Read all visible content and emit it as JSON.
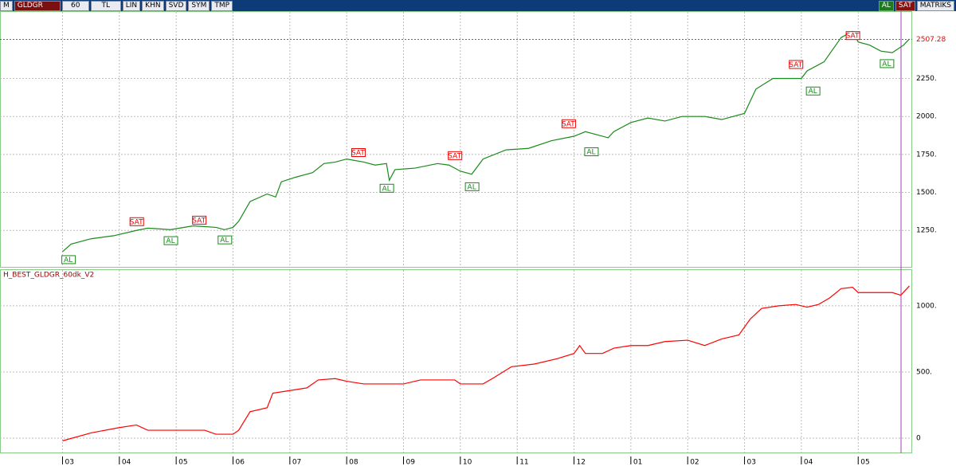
{
  "toolbar": {
    "prefix": "M",
    "symbol": "GLDGR",
    "period": "60",
    "currency": "TL",
    "buttons": [
      "LIN",
      "KHN",
      "SVD",
      "SYM",
      "TMP"
    ],
    "buy": "AL",
    "sell": "SAT",
    "brand": "MATRIKS"
  },
  "chart_data": [
    {
      "type": "line",
      "color": "#1a8a1a",
      "xlim": [
        -1.1,
        14.95
      ],
      "ylim": [
        1010,
        2688
      ],
      "yticks": [
        {
          "value": 1250,
          "label": "1250."
        },
        {
          "value": 1500,
          "label": "1500."
        },
        {
          "value": 1750,
          "label": "1750."
        },
        {
          "value": 2000,
          "label": "2000."
        },
        {
          "value": 2250,
          "label": "2250."
        }
      ],
      "grid": true,
      "last_price": 2507.28,
      "x": [
        0,
        0.15,
        0.5,
        0.9,
        1.3,
        1.5,
        1.9,
        2.3,
        2.7,
        2.85,
        3.0,
        3.1,
        3.3,
        3.6,
        3.75,
        3.85,
        4.1,
        4.4,
        4.6,
        4.8,
        5.0,
        5.3,
        5.5,
        5.7,
        5.75,
        5.85,
        6.2,
        6.6,
        6.8,
        7.0,
        7.2,
        7.4,
        7.8,
        8.2,
        8.6,
        9.0,
        9.2,
        9.4,
        9.6,
        9.7,
        10.0,
        10.3,
        10.6,
        10.9,
        11.3,
        11.6,
        12.0,
        12.2,
        12.5,
        12.8,
        13.0,
        13.1,
        13.4,
        13.7,
        13.9,
        14.0,
        14.2,
        14.4,
        14.6,
        14.8,
        14.9
      ],
      "values": [
        1110,
        1160,
        1195,
        1215,
        1250,
        1265,
        1255,
        1280,
        1270,
        1255,
        1270,
        1310,
        1440,
        1490,
        1470,
        1570,
        1600,
        1630,
        1690,
        1700,
        1720,
        1700,
        1680,
        1690,
        1580,
        1650,
        1660,
        1690,
        1680,
        1640,
        1620,
        1720,
        1780,
        1790,
        1840,
        1870,
        1900,
        1880,
        1860,
        1900,
        1960,
        1990,
        1970,
        2000,
        2000,
        1980,
        2020,
        2180,
        2250,
        2250,
        2250,
        2300,
        2360,
        2520,
        2560,
        2490,
        2470,
        2430,
        2420,
        2470,
        2510
      ],
      "signals": [
        {
          "label": "AL",
          "x": 0.1,
          "value": 1110
        },
        {
          "label": "SAT",
          "x": 1.3,
          "value": 1255
        },
        {
          "label": "AL",
          "x": 1.9,
          "value": 1235
        },
        {
          "label": "SAT",
          "x": 2.4,
          "value": 1265
        },
        {
          "label": "AL",
          "x": 2.85,
          "value": 1240
        },
        {
          "label": "SAT",
          "x": 5.2,
          "value": 1710
        },
        {
          "label": "AL",
          "x": 5.7,
          "value": 1580
        },
        {
          "label": "SAT",
          "x": 6.9,
          "value": 1690
        },
        {
          "label": "AL",
          "x": 7.2,
          "value": 1590
        },
        {
          "label": "SAT",
          "x": 8.9,
          "value": 1900
        },
        {
          "label": "AL",
          "x": 9.3,
          "value": 1820
        },
        {
          "label": "SAT",
          "x": 12.9,
          "value": 2290
        },
        {
          "label": "AL",
          "x": 13.2,
          "value": 2220
        },
        {
          "label": "SAT",
          "x": 13.9,
          "value": 2480
        },
        {
          "label": "AL",
          "x": 14.5,
          "value": 2400
        }
      ]
    },
    {
      "type": "line",
      "title": "H_BEST_GLDGR_60dk_V2",
      "color": "#ff0000",
      "xlim": [
        -1.1,
        14.95
      ],
      "ylim": [
        -108,
        1270
      ],
      "yticks": [
        0,
        {
          "value": 500,
          "label": "500."
        },
        {
          "value": 1000,
          "label": "1000."
        }
      ],
      "xticks": [
        {
          "value": 0,
          "label": "03"
        },
        {
          "value": 1,
          "label": "04"
        },
        {
          "value": 2,
          "label": "05"
        },
        {
          "value": 3,
          "label": "06"
        },
        {
          "value": 4,
          "label": "07"
        },
        {
          "value": 5,
          "label": "08"
        },
        {
          "value": 6,
          "label": "09"
        },
        {
          "value": 7,
          "label": "10"
        },
        {
          "value": 8,
          "label": "11"
        },
        {
          "value": 9,
          "label": "12"
        },
        {
          "value": 10,
          "label": "01"
        },
        {
          "value": 11,
          "label": "02"
        },
        {
          "value": 12,
          "label": "03"
        },
        {
          "value": 13,
          "label": "04"
        },
        {
          "value": 14,
          "label": "05"
        }
      ],
      "grid": true,
      "x": [
        0,
        0.5,
        1.0,
        1.3,
        1.5,
        2.5,
        2.7,
        3.0,
        3.1,
        3.3,
        3.6,
        3.7,
        4.0,
        4.3,
        4.5,
        4.8,
        5.0,
        5.3,
        6.0,
        6.3,
        6.9,
        7.0,
        7.4,
        7.6,
        7.9,
        8.3,
        8.7,
        9.0,
        9.1,
        9.2,
        9.5,
        9.7,
        10.0,
        10.3,
        10.6,
        11.0,
        11.3,
        11.6,
        11.9,
        12.1,
        12.3,
        12.6,
        12.9,
        13.1,
        13.3,
        13.5,
        13.7,
        13.9,
        14.0,
        14.6,
        14.75,
        14.9
      ],
      "values": [
        -20,
        40,
        80,
        100,
        60,
        60,
        30,
        30,
        60,
        200,
        230,
        340,
        360,
        380,
        440,
        450,
        430,
        410,
        410,
        440,
        440,
        410,
        410,
        460,
        540,
        560,
        600,
        640,
        700,
        640,
        640,
        680,
        700,
        700,
        730,
        740,
        700,
        750,
        780,
        900,
        980,
        1000,
        1010,
        990,
        1010,
        1060,
        1130,
        1140,
        1100,
        1100,
        1080,
        1150
      ]
    }
  ]
}
